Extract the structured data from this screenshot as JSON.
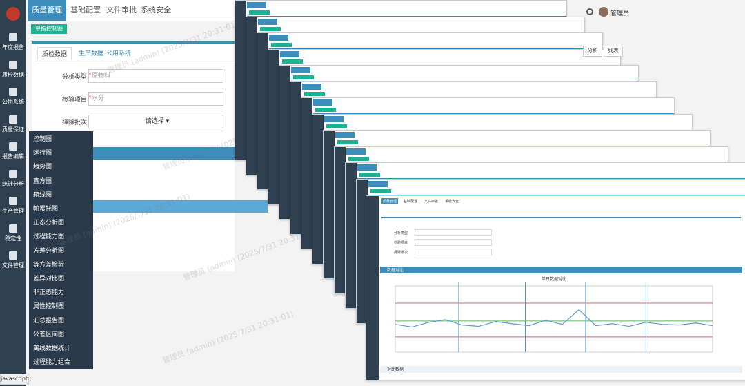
{
  "sidebar": {
    "items": [
      "年度报告",
      "质检数据",
      "公用系统",
      "质量保证",
      "报告编辑",
      "统计分析",
      "生产管理",
      "稳定性",
      "文件管理"
    ]
  },
  "top_nav": {
    "items": [
      "质量管理",
      "基础配置",
      "文件审批",
      "系统安全"
    ],
    "user": "管理员"
  },
  "page_tag": "单指控制图",
  "tabs": [
    "质检数据",
    "生产数据",
    "公用系统"
  ],
  "form": {
    "required_mark": "*",
    "fields": [
      {
        "label": "分析类型",
        "value": "原物料",
        "required": true
      },
      {
        "label": "检验项目",
        "value": "水分",
        "required": true
      },
      {
        "label": "择除批次",
        "value": "请选择 ▾",
        "required": false
      }
    ]
  },
  "buttons": [
    "分析",
    "列表"
  ],
  "menu": [
    "控制图",
    "运行图",
    "趋势图",
    "直方图",
    "箱线图",
    "帕累托图",
    "正态分析图",
    "过程能力图",
    "方差分析图",
    "等方差检验",
    "差异对比图",
    "非正态能力",
    "属性控制图",
    "汇总报告图",
    "公差区间图",
    "离线数据统计",
    "过程能力组合"
  ],
  "watermark": "管理员 (admin) (2025/7/31 20:31:01)",
  "status_bar": "javascript:;",
  "front_window": {
    "panel_title": "数据对比",
    "footer_panel": "对比数据",
    "chart": {
      "type": "line",
      "title": "单日数据对比",
      "ylim": [
        0,
        10
      ],
      "values": [
        4.2,
        3.8,
        4.5,
        4.9,
        4.1,
        3.9,
        4.6,
        4.3,
        4.0,
        4.8,
        4.2,
        6.4,
        4.0,
        4.3,
        3.9,
        4.5,
        4.2,
        4.1,
        4.4,
        4.0
      ],
      "color": "#5b9bd5",
      "reference_lines": [
        {
          "value": 7.4,
          "color": "#e06070"
        },
        {
          "value": 4.7,
          "color": "#5cb85c"
        },
        {
          "value": 2.3,
          "color": "#e06070"
        }
      ]
    }
  }
}
